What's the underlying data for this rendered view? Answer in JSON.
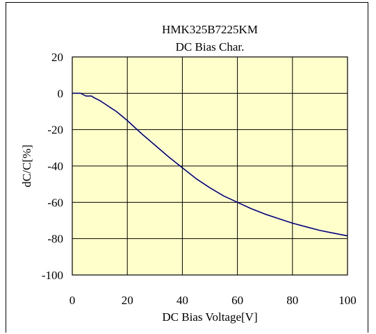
{
  "chart_data": {
    "type": "line",
    "title": "HMK325B7225KM",
    "subtitle": "DC Bias Char.",
    "xlabel": "DC Bias Voltage[V]",
    "ylabel": "dC/C[%]",
    "xlim": [
      0,
      100
    ],
    "ylim": [
      -100,
      20
    ],
    "xticks": [
      0,
      20,
      40,
      60,
      80,
      100
    ],
    "yticks": [
      20,
      0,
      -20,
      -40,
      -60,
      -80,
      -100
    ],
    "grid": true,
    "plot_background": "#ffffcc",
    "series": [
      {
        "color": "#000080",
        "x": [
          0,
          3,
          5,
          7,
          8,
          10,
          12,
          14,
          16,
          18,
          20,
          25,
          30,
          35,
          40,
          45,
          50,
          55,
          60,
          65,
          70,
          75,
          80,
          85,
          90,
          95,
          100
        ],
        "y": [
          0,
          0,
          -1.5,
          -1.5,
          -2.5,
          -4,
          -6,
          -8,
          -10,
          -12.5,
          -15,
          -22,
          -28.5,
          -35,
          -41,
          -47,
          -52,
          -56.5,
          -60,
          -63.5,
          -66.5,
          -69,
          -71.5,
          -73.5,
          -75.5,
          -77,
          -78.5
        ]
      }
    ]
  }
}
